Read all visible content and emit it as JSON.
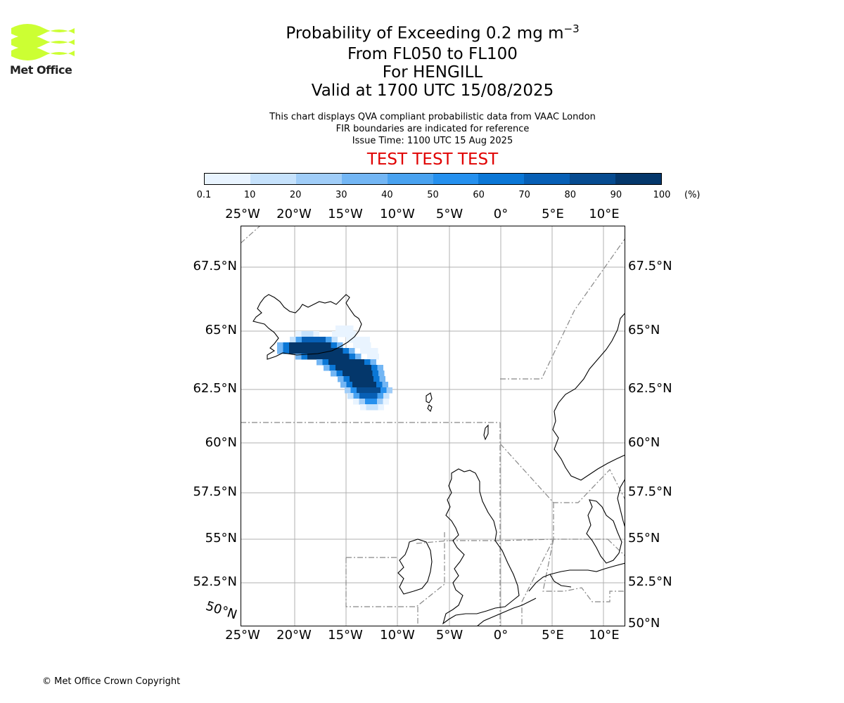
{
  "header": {
    "title_prefix": "Probability of Exceeding 0.2 mg m",
    "title_sup": "−3",
    "line2": "From FL050 to FL100",
    "line3": "For HENGILL",
    "line4": "Valid at 1700 UTC 15/08/2025",
    "info1": "This chart displays QVA compliant probabilistic data from VAAC London",
    "info2": "FIR boundaries are indicated for reference",
    "info3": "Issue Time: 1100 UTC 15 Aug 2025",
    "test_banner": "TEST TEST TEST"
  },
  "logo": {
    "text": "Met Office",
    "color": "#ccff33"
  },
  "colorbar": {
    "ticks": [
      "0.1",
      "10",
      "20",
      "30",
      "40",
      "50",
      "60",
      "70",
      "80",
      "90",
      "100"
    ],
    "unit": "(%)",
    "colors": [
      "#e9f4ff",
      "#c6e2fc",
      "#a0cdf8",
      "#73b6f4",
      "#49a2f0",
      "#2590ee",
      "#0b77d6",
      "#075fb5",
      "#064b90",
      "#04376b"
    ]
  },
  "map": {
    "lon_labels": [
      "25°W",
      "20°W",
      "15°W",
      "10°W",
      "5°W",
      "0°",
      "5°E",
      "10°E"
    ],
    "lat_labels": [
      "67.5°N",
      "65°N",
      "62.5°N",
      "60°N",
      "57.5°N",
      "55°N",
      "52.5°N",
      "50°N"
    ],
    "lat_label_left_bottom": "50°N"
  },
  "footer": {
    "copyright": "© Met Office Crown Copyright"
  }
}
